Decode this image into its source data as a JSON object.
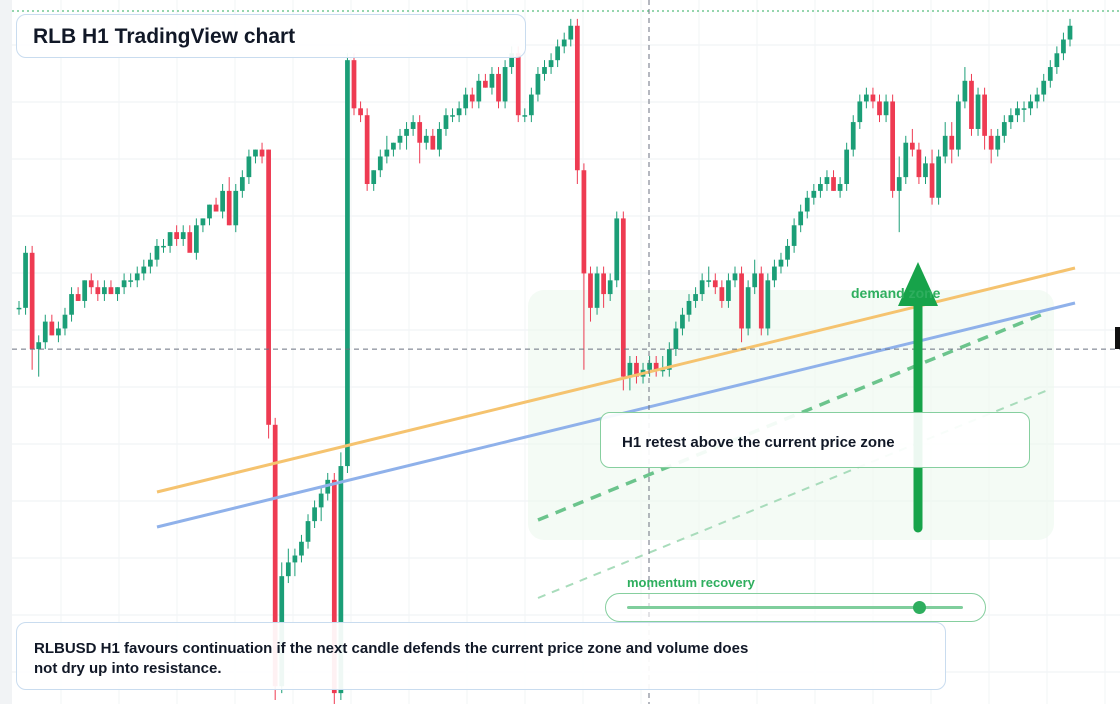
{
  "title": "RLB H1 TradingView chart",
  "chart_data": {
    "type": "candlestick",
    "symbol": "RLBUSD",
    "timeframe": "H1",
    "price_range": [
      0,
      100
    ],
    "up_color": "#1b9e77",
    "down_color": "#ee3b52",
    "candles": [
      {
        "o": 57,
        "h": 58,
        "l": 56,
        "c": 57
      },
      {
        "o": 57,
        "h": 66,
        "l": 56,
        "c": 65
      },
      {
        "o": 65,
        "h": 66,
        "l": 48,
        "c": 51
      },
      {
        "o": 51,
        "h": 53,
        "l": 47,
        "c": 52
      },
      {
        "o": 52,
        "h": 56,
        "l": 51,
        "c": 55
      },
      {
        "o": 55,
        "h": 56,
        "l": 53,
        "c": 53
      },
      {
        "o": 53,
        "h": 55,
        "l": 52,
        "c": 54
      },
      {
        "o": 54,
        "h": 57,
        "l": 53,
        "c": 56
      },
      {
        "o": 56,
        "h": 60,
        "l": 55,
        "c": 59
      },
      {
        "o": 59,
        "h": 60,
        "l": 58,
        "c": 58
      },
      {
        "o": 58,
        "h": 61,
        "l": 57,
        "c": 61
      },
      {
        "o": 61,
        "h": 62,
        "l": 59,
        "c": 60
      },
      {
        "o": 60,
        "h": 61,
        "l": 58,
        "c": 59
      },
      {
        "o": 59,
        "h": 61,
        "l": 58,
        "c": 60
      },
      {
        "o": 60,
        "h": 61,
        "l": 59,
        "c": 59
      },
      {
        "o": 59,
        "h": 60,
        "l": 58,
        "c": 60
      },
      {
        "o": 60,
        "h": 62,
        "l": 59,
        "c": 61
      },
      {
        "o": 61,
        "h": 62,
        "l": 60,
        "c": 61
      },
      {
        "o": 61,
        "h": 63,
        "l": 60,
        "c": 62
      },
      {
        "o": 62,
        "h": 64,
        "l": 61,
        "c": 63
      },
      {
        "o": 63,
        "h": 65,
        "l": 62,
        "c": 64
      },
      {
        "o": 64,
        "h": 67,
        "l": 63,
        "c": 66
      },
      {
        "o": 66,
        "h": 67,
        "l": 65,
        "c": 66
      },
      {
        "o": 66,
        "h": 68,
        "l": 65,
        "c": 68
      },
      {
        "o": 68,
        "h": 69,
        "l": 66,
        "c": 67
      },
      {
        "o": 67,
        "h": 69,
        "l": 66,
        "c": 68
      },
      {
        "o": 68,
        "h": 69,
        "l": 66,
        "c": 65
      },
      {
        "o": 65,
        "h": 70,
        "l": 64,
        "c": 69
      },
      {
        "o": 69,
        "h": 70,
        "l": 68,
        "c": 70
      },
      {
        "o": 70,
        "h": 72,
        "l": 69,
        "c": 72
      },
      {
        "o": 72,
        "h": 73,
        "l": 71,
        "c": 71
      },
      {
        "o": 71,
        "h": 75,
        "l": 70,
        "c": 74
      },
      {
        "o": 74,
        "h": 76,
        "l": 69,
        "c": 69
      },
      {
        "o": 69,
        "h": 75,
        "l": 68,
        "c": 74
      },
      {
        "o": 74,
        "h": 77,
        "l": 73,
        "c": 76
      },
      {
        "o": 76,
        "h": 80,
        "l": 75,
        "c": 79
      },
      {
        "o": 79,
        "h": 80,
        "l": 78,
        "c": 80
      },
      {
        "o": 80,
        "h": 81,
        "l": 78,
        "c": 79
      },
      {
        "o": 80,
        "h": 80,
        "l": 38,
        "c": 40
      },
      {
        "o": 40,
        "h": 41,
        "l": 0,
        "c": 2
      },
      {
        "o": 2,
        "h": 20,
        "l": 1,
        "c": 18
      },
      {
        "o": 18,
        "h": 22,
        "l": 17,
        "c": 20
      },
      {
        "o": 20,
        "h": 22,
        "l": 18,
        "c": 21
      },
      {
        "o": 21,
        "h": 24,
        "l": 20,
        "c": 23
      },
      {
        "o": 23,
        "h": 27,
        "l": 22,
        "c": 26
      },
      {
        "o": 26,
        "h": 29,
        "l": 25,
        "c": 28
      },
      {
        "o": 28,
        "h": 31,
        "l": 26,
        "c": 30
      },
      {
        "o": 30,
        "h": 33,
        "l": 29,
        "c": 32
      },
      {
        "o": 32,
        "h": 33,
        "l": -2,
        "c": 1
      },
      {
        "o": 1,
        "h": 36,
        "l": 0,
        "c": 34
      },
      {
        "o": 34,
        "h": 94,
        "l": 33,
        "c": 93
      },
      {
        "o": 93,
        "h": 94,
        "l": 85,
        "c": 86
      },
      {
        "o": 86,
        "h": 87,
        "l": 84,
        "c": 85
      },
      {
        "o": 85,
        "h": 86,
        "l": 74,
        "c": 75
      },
      {
        "o": 75,
        "h": 77,
        "l": 74,
        "c": 77
      },
      {
        "o": 77,
        "h": 80,
        "l": 76,
        "c": 79
      },
      {
        "o": 79,
        "h": 82,
        "l": 78,
        "c": 80
      },
      {
        "o": 80,
        "h": 81,
        "l": 79,
        "c": 81
      },
      {
        "o": 81,
        "h": 83,
        "l": 80,
        "c": 82
      },
      {
        "o": 82,
        "h": 84,
        "l": 80,
        "c": 83
      },
      {
        "o": 83,
        "h": 85,
        "l": 82,
        "c": 84
      },
      {
        "o": 84,
        "h": 85,
        "l": 78,
        "c": 81
      },
      {
        "o": 81,
        "h": 83,
        "l": 80,
        "c": 82
      },
      {
        "o": 82,
        "h": 83,
        "l": 80,
        "c": 80
      },
      {
        "o": 80,
        "h": 84,
        "l": 79,
        "c": 83
      },
      {
        "o": 83,
        "h": 86,
        "l": 82,
        "c": 85
      },
      {
        "o": 85,
        "h": 86,
        "l": 84,
        "c": 85
      },
      {
        "o": 85,
        "h": 87,
        "l": 84,
        "c": 86
      },
      {
        "o": 86,
        "h": 89,
        "l": 85,
        "c": 88
      },
      {
        "o": 88,
        "h": 89,
        "l": 86,
        "c": 87
      },
      {
        "o": 87,
        "h": 91,
        "l": 86,
        "c": 90
      },
      {
        "o": 90,
        "h": 91,
        "l": 89,
        "c": 89
      },
      {
        "o": 89,
        "h": 92,
        "l": 88,
        "c": 91
      },
      {
        "o": 91,
        "h": 92,
        "l": 86,
        "c": 87
      },
      {
        "o": 87,
        "h": 93,
        "l": 86,
        "c": 92
      },
      {
        "o": 92,
        "h": 95,
        "l": 91,
        "c": 94
      },
      {
        "o": 94,
        "h": 95,
        "l": 84,
        "c": 85
      },
      {
        "o": 85,
        "h": 86,
        "l": 84,
        "c": 85
      },
      {
        "o": 85,
        "h": 89,
        "l": 84,
        "c": 88
      },
      {
        "o": 88,
        "h": 92,
        "l": 87,
        "c": 91
      },
      {
        "o": 91,
        "h": 93,
        "l": 90,
        "c": 92
      },
      {
        "o": 92,
        "h": 94,
        "l": 91,
        "c": 93
      },
      {
        "o": 93,
        "h": 96,
        "l": 92,
        "c": 95
      },
      {
        "o": 95,
        "h": 97,
        "l": 94,
        "c": 96
      },
      {
        "o": 96,
        "h": 99,
        "l": 95,
        "c": 98
      },
      {
        "o": 98,
        "h": 99,
        "l": 75,
        "c": 77
      },
      {
        "o": 77,
        "h": 78,
        "l": 48,
        "c": 62
      },
      {
        "o": 62,
        "h": 63,
        "l": 55,
        "c": 57
      },
      {
        "o": 57,
        "h": 63,
        "l": 56,
        "c": 62
      },
      {
        "o": 62,
        "h": 63,
        "l": 57,
        "c": 59
      },
      {
        "o": 59,
        "h": 62,
        "l": 58,
        "c": 61
      },
      {
        "o": 61,
        "h": 71,
        "l": 60,
        "c": 70
      },
      {
        "o": 70,
        "h": 71,
        "l": 45,
        "c": 47
      },
      {
        "o": 47,
        "h": 50,
        "l": 45,
        "c": 49
      },
      {
        "o": 49,
        "h": 50,
        "l": 46,
        "c": 47
      },
      {
        "o": 47,
        "h": 49,
        "l": 46,
        "c": 48
      },
      {
        "o": 48,
        "h": 50,
        "l": 47,
        "c": 49
      },
      {
        "o": 49,
        "h": 50,
        "l": 47,
        "c": 48
      },
      {
        "o": 48,
        "h": 50,
        "l": 47,
        "c": 48
      },
      {
        "o": 48,
        "h": 52,
        "l": 47,
        "c": 51
      },
      {
        "o": 51,
        "h": 55,
        "l": 50,
        "c": 54
      },
      {
        "o": 54,
        "h": 57,
        "l": 53,
        "c": 56
      },
      {
        "o": 56,
        "h": 59,
        "l": 55,
        "c": 58
      },
      {
        "o": 58,
        "h": 60,
        "l": 57,
        "c": 59
      },
      {
        "o": 59,
        "h": 62,
        "l": 58,
        "c": 61
      },
      {
        "o": 61,
        "h": 63,
        "l": 60,
        "c": 61
      },
      {
        "o": 61,
        "h": 62,
        "l": 59,
        "c": 60
      },
      {
        "o": 60,
        "h": 61,
        "l": 57,
        "c": 58
      },
      {
        "o": 58,
        "h": 62,
        "l": 57,
        "c": 61
      },
      {
        "o": 61,
        "h": 63,
        "l": 60,
        "c": 62
      },
      {
        "o": 62,
        "h": 63,
        "l": 52,
        "c": 54
      },
      {
        "o": 54,
        "h": 61,
        "l": 53,
        "c": 60
      },
      {
        "o": 60,
        "h": 64,
        "l": 59,
        "c": 62
      },
      {
        "o": 62,
        "h": 63,
        "l": 53,
        "c": 54
      },
      {
        "o": 54,
        "h": 62,
        "l": 53,
        "c": 61
      },
      {
        "o": 61,
        "h": 64,
        "l": 60,
        "c": 63
      },
      {
        "o": 63,
        "h": 65,
        "l": 62,
        "c": 64
      },
      {
        "o": 64,
        "h": 67,
        "l": 63,
        "c": 66
      },
      {
        "o": 66,
        "h": 70,
        "l": 65,
        "c": 69
      },
      {
        "o": 69,
        "h": 72,
        "l": 68,
        "c": 71
      },
      {
        "o": 71,
        "h": 74,
        "l": 70,
        "c": 73
      },
      {
        "o": 73,
        "h": 75,
        "l": 72,
        "c": 74
      },
      {
        "o": 74,
        "h": 76,
        "l": 73,
        "c": 75
      },
      {
        "o": 75,
        "h": 77,
        "l": 74,
        "c": 76
      },
      {
        "o": 76,
        "h": 77,
        "l": 74,
        "c": 74
      },
      {
        "o": 74,
        "h": 76,
        "l": 73,
        "c": 75
      },
      {
        "o": 75,
        "h": 81,
        "l": 74,
        "c": 80
      },
      {
        "o": 80,
        "h": 85,
        "l": 79,
        "c": 84
      },
      {
        "o": 84,
        "h": 88,
        "l": 83,
        "c": 87
      },
      {
        "o": 87,
        "h": 89,
        "l": 86,
        "c": 88
      },
      {
        "o": 88,
        "h": 89,
        "l": 86,
        "c": 87
      },
      {
        "o": 87,
        "h": 88,
        "l": 84,
        "c": 85
      },
      {
        "o": 85,
        "h": 88,
        "l": 84,
        "c": 87
      },
      {
        "o": 87,
        "h": 88,
        "l": 73,
        "c": 74
      },
      {
        "o": 74,
        "h": 79,
        "l": 68,
        "c": 76
      },
      {
        "o": 76,
        "h": 82,
        "l": 75,
        "c": 81
      },
      {
        "o": 81,
        "h": 83,
        "l": 79,
        "c": 80
      },
      {
        "o": 80,
        "h": 81,
        "l": 75,
        "c": 76
      },
      {
        "o": 76,
        "h": 79,
        "l": 75,
        "c": 78
      },
      {
        "o": 78,
        "h": 80,
        "l": 72,
        "c": 73
      },
      {
        "o": 73,
        "h": 80,
        "l": 72,
        "c": 79
      },
      {
        "o": 79,
        "h": 84,
        "l": 78,
        "c": 82
      },
      {
        "o": 82,
        "h": 84,
        "l": 78,
        "c": 80
      },
      {
        "o": 80,
        "h": 88,
        "l": 79,
        "c": 87
      },
      {
        "o": 87,
        "h": 92,
        "l": 86,
        "c": 90
      },
      {
        "o": 90,
        "h": 91,
        "l": 82,
        "c": 83
      },
      {
        "o": 83,
        "h": 89,
        "l": 82,
        "c": 88
      },
      {
        "o": 88,
        "h": 89,
        "l": 80,
        "c": 82
      },
      {
        "o": 82,
        "h": 83,
        "l": 78,
        "c": 80
      },
      {
        "o": 80,
        "h": 83,
        "l": 79,
        "c": 82
      },
      {
        "o": 82,
        "h": 85,
        "l": 81,
        "c": 84
      },
      {
        "o": 84,
        "h": 86,
        "l": 83,
        "c": 85
      },
      {
        "o": 85,
        "h": 87,
        "l": 84,
        "c": 86
      },
      {
        "o": 86,
        "h": 87,
        "l": 84,
        "c": 86
      },
      {
        "o": 86,
        "h": 88,
        "l": 85,
        "c": 87
      },
      {
        "o": 87,
        "h": 89,
        "l": 86,
        "c": 88
      },
      {
        "o": 88,
        "h": 91,
        "l": 87,
        "c": 90
      },
      {
        "o": 90,
        "h": 93,
        "l": 89,
        "c": 92
      },
      {
        "o": 92,
        "h": 95,
        "l": 91,
        "c": 94
      },
      {
        "o": 94,
        "h": 97,
        "l": 93,
        "c": 96
      },
      {
        "o": 96,
        "h": 99,
        "l": 95,
        "c": 98
      }
    ]
  },
  "current_price_line": 51,
  "trendlines": [
    {
      "name": "orange-trendline",
      "color": "#f5c36f"
    },
    {
      "name": "blue-trendline",
      "color": "#8fb1ea"
    }
  ],
  "demand_zone_label": "demand zone",
  "callout_text": "H1 retest above the current price zone",
  "momentum": {
    "label": "momentum recovery",
    "level": 0.87
  },
  "summary_text": "RLBUSD H1 favours continuation if the next candle defends the current price zone and volume does not dry up into resistance.",
  "colors": {
    "accent": "#2eae5e",
    "up": "#1b9e77",
    "down": "#ee3b52"
  }
}
